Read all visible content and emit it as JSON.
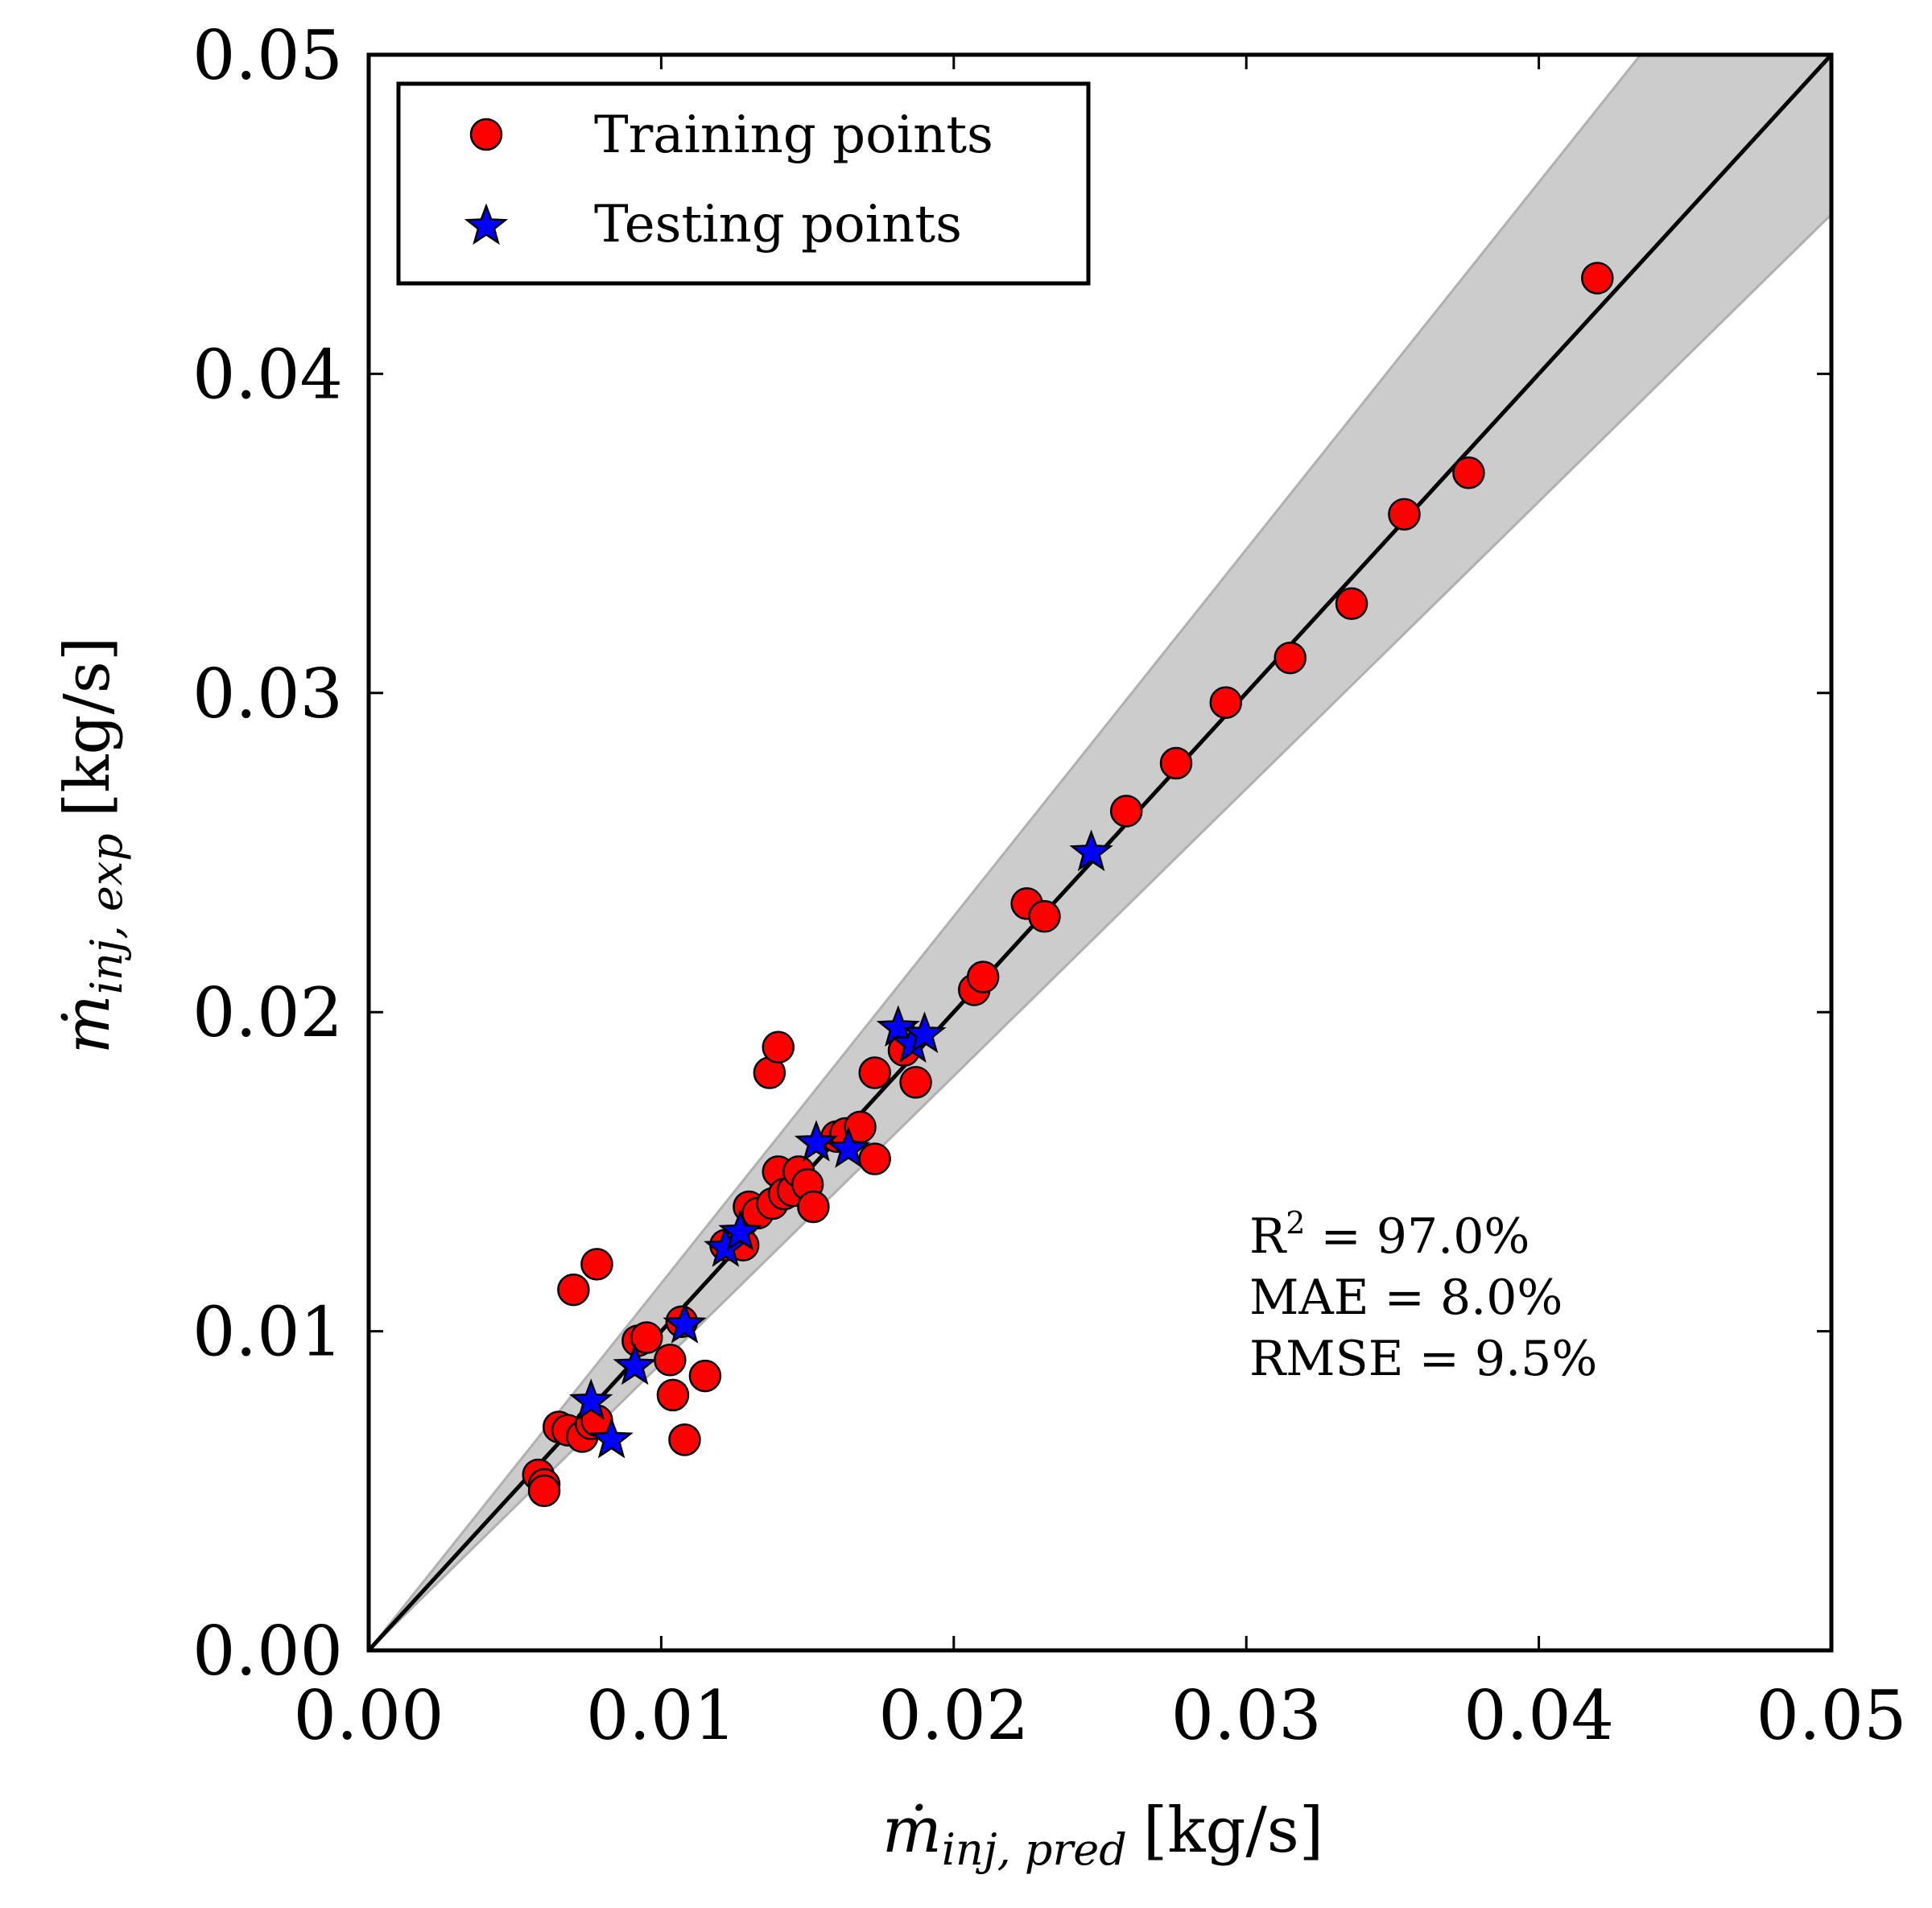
{
  "chart_data": {
    "type": "scatter",
    "xlabel": {
      "base": "ṁ",
      "sub": "inj, pred",
      "unit": "[kg/s]"
    },
    "ylabel": {
      "base": "ṁ",
      "sub": "inj, exp",
      "unit": "[kg/s]"
    },
    "xlim": [
      0,
      0.05
    ],
    "ylim": [
      0,
      0.05
    ],
    "xticks": [
      "0.00",
      "0.01",
      "0.02",
      "0.03",
      "0.04",
      "0.05"
    ],
    "yticks": [
      "0.00",
      "0.01",
      "0.02",
      "0.03",
      "0.04",
      "0.05"
    ],
    "legend_position": "top-left",
    "band": {
      "upper_slope": 1.15,
      "lower_slope": 0.9
    },
    "identity_line": true,
    "colors": {
      "training": "#ff0000",
      "testing": "#0000ff",
      "band": "#cccccc",
      "line": "#000000"
    },
    "series": [
      {
        "name": "Training points",
        "marker": "circle",
        "points": [
          [
            0.0058,
            0.0055
          ],
          [
            0.006,
            0.0052
          ],
          [
            0.006,
            0.005
          ],
          [
            0.0065,
            0.007
          ],
          [
            0.0068,
            0.0069
          ],
          [
            0.007,
            0.0113
          ],
          [
            0.0073,
            0.0067
          ],
          [
            0.0076,
            0.0071
          ],
          [
            0.0078,
            0.0072
          ],
          [
            0.0078,
            0.0121
          ],
          [
            0.0092,
            0.0097
          ],
          [
            0.0095,
            0.0098
          ],
          [
            0.0103,
            0.0091
          ],
          [
            0.0104,
            0.008
          ],
          [
            0.0107,
            0.0103
          ],
          [
            0.0108,
            0.0066
          ],
          [
            0.0115,
            0.0086
          ],
          [
            0.0122,
            0.0127
          ],
          [
            0.0128,
            0.0127
          ],
          [
            0.013,
            0.0139
          ],
          [
            0.0133,
            0.0137
          ],
          [
            0.0137,
            0.0181
          ],
          [
            0.0138,
            0.014
          ],
          [
            0.014,
            0.0189
          ],
          [
            0.014,
            0.015
          ],
          [
            0.0142,
            0.0143
          ],
          [
            0.0145,
            0.0144
          ],
          [
            0.0147,
            0.015
          ],
          [
            0.015,
            0.0146
          ],
          [
            0.0152,
            0.0139
          ],
          [
            0.016,
            0.0161
          ],
          [
            0.0163,
            0.0162
          ],
          [
            0.0168,
            0.0164
          ],
          [
            0.0173,
            0.0181
          ],
          [
            0.0173,
            0.0154
          ],
          [
            0.0183,
            0.0188
          ],
          [
            0.0187,
            0.0178
          ],
          [
            0.0207,
            0.0207
          ],
          [
            0.021,
            0.0211
          ],
          [
            0.0225,
            0.0234
          ],
          [
            0.0231,
            0.023
          ],
          [
            0.0259,
            0.0263
          ],
          [
            0.0276,
            0.0278
          ],
          [
            0.0293,
            0.0297
          ],
          [
            0.0315,
            0.0311
          ],
          [
            0.0336,
            0.0328
          ],
          [
            0.0354,
            0.0356
          ],
          [
            0.0376,
            0.0369
          ],
          [
            0.042,
            0.043
          ]
        ]
      },
      {
        "name": "Testing points",
        "marker": "star",
        "points": [
          [
            0.0076,
            0.0078
          ],
          [
            0.0083,
            0.0066
          ],
          [
            0.0091,
            0.0089
          ],
          [
            0.0108,
            0.0102
          ],
          [
            0.0122,
            0.0126
          ],
          [
            0.0127,
            0.0131
          ],
          [
            0.0153,
            0.0159
          ],
          [
            0.0164,
            0.0157
          ],
          [
            0.0181,
            0.0195
          ],
          [
            0.0186,
            0.019
          ],
          [
            0.019,
            0.0193
          ],
          [
            0.0247,
            0.025
          ]
        ]
      }
    ],
    "annotations": {
      "r2_prefix": "R",
      "r2_sup": "2",
      "r2_value": " = 97.0%",
      "mae": "MAE = 8.0%",
      "rmse": "RMSE = 9.5%"
    }
  }
}
